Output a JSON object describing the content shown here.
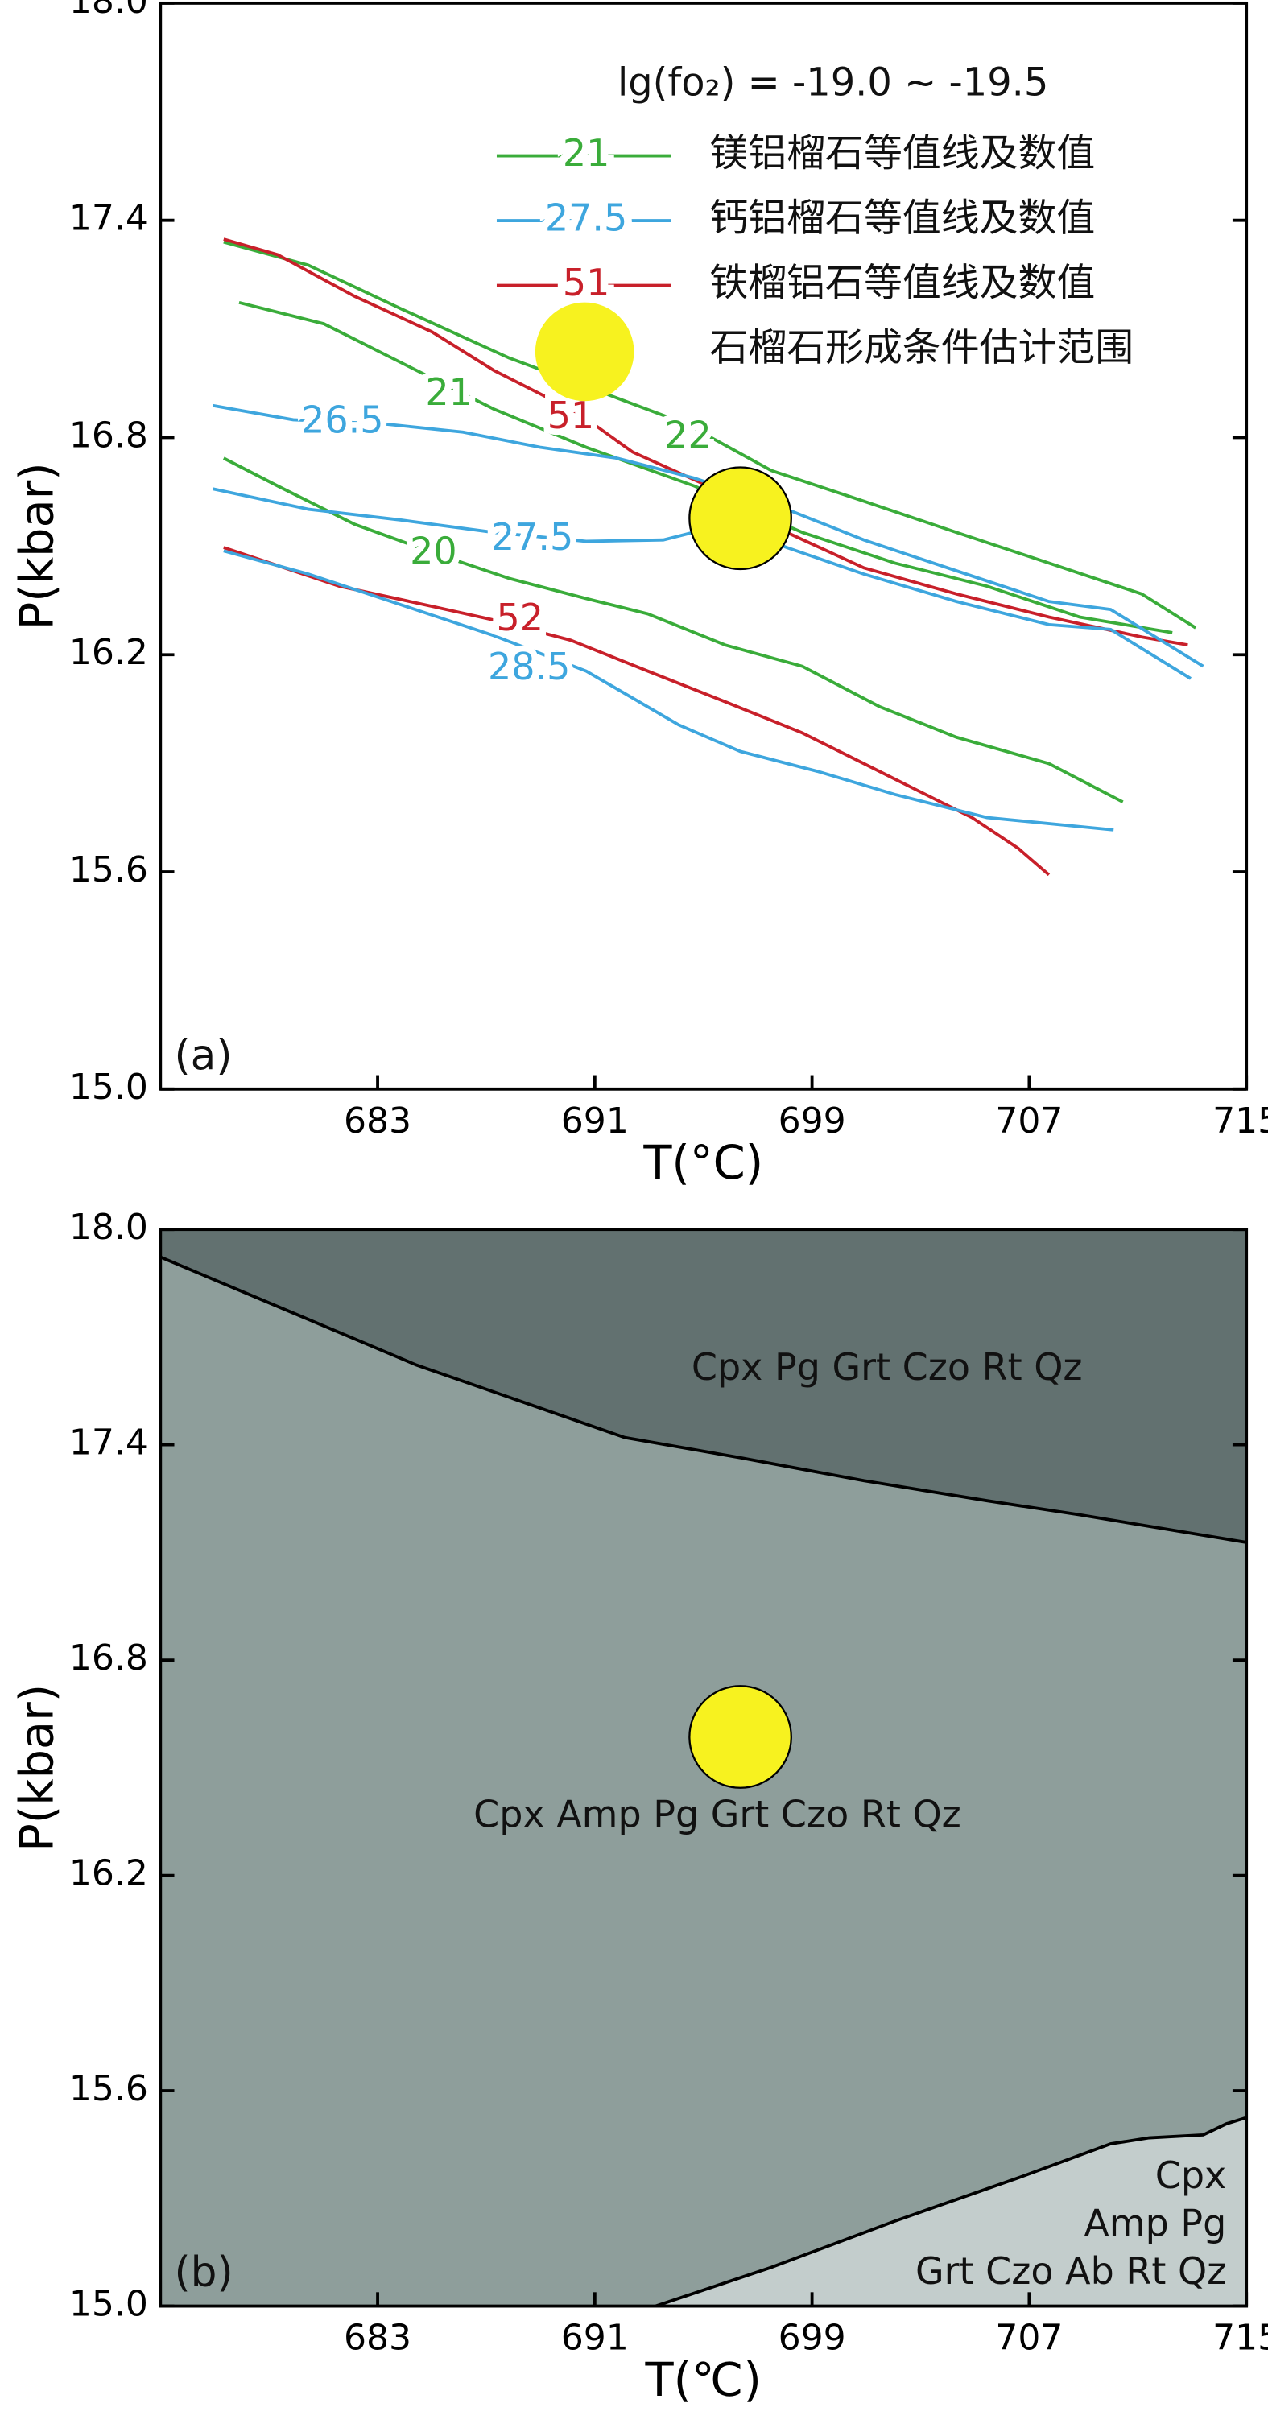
{
  "chart_data": [
    {
      "type": "line",
      "title": "lg(fo₂) = -19.0 ~ -19.5",
      "panel": "(a)",
      "x_label": "T(°C)",
      "y_label": "P(kbar)",
      "xlim": [
        675,
        715
      ],
      "ylim": [
        15,
        18
      ],
      "xticks": [
        683,
        691,
        699,
        707,
        715
      ],
      "yticks": [
        {
          "value": 18,
          "label": "18.0"
        },
        17.4,
        16.8,
        16.2,
        15.6,
        {
          "value": 15,
          "label": "15.0"
        }
      ],
      "legend": [
        {
          "label": "21",
          "name": "镁铝榴石等值线及数值",
          "color": "#3aac3a"
        },
        {
          "label": "27.5",
          "name": "钙铝榴石等值线及数值",
          "color": "#3ea6de"
        },
        {
          "label": "51",
          "name": "铁榴铝石等值线及数值",
          "color": "#c8202a"
        },
        {
          "name": "石榴石形成条件估计范围",
          "color": "#f7f21f"
        }
      ],
      "series": [
        {
          "label": "22",
          "color": "#3aac3a",
          "x": [
            677.33,
            680.45,
            683.86,
            687.84,
            691.82,
            694.38,
            697.5,
            700.91,
            704.32,
            707.73,
            711.14,
            713.13
          ],
          "y": [
            17.34,
            17.276,
            17.156,
            17.02,
            16.909,
            16.837,
            16.709,
            16.624,
            16.538,
            16.453,
            16.368,
            16.274
          ]
        },
        {
          "label": "21",
          "color": "#3aac3a",
          "x": [
            677.9,
            681.02,
            683.86,
            687.27,
            690.68,
            694.66,
            698.64,
            702.05,
            705.45,
            708.86,
            712.27
          ],
          "y": [
            17.173,
            17.114,
            17.007,
            16.879,
            16.773,
            16.666,
            16.538,
            16.453,
            16.389,
            16.304,
            16.261
          ]
        },
        {
          "label": "20",
          "color": "#3aac3a",
          "x": [
            677.33,
            679.32,
            682.16,
            685.0,
            687.84,
            690.68,
            692.95,
            695.8,
            698.64,
            701.48,
            704.32,
            707.73,
            710.45
          ],
          "y": [
            16.743,
            16.666,
            16.56,
            16.483,
            16.411,
            16.355,
            16.313,
            16.227,
            16.168,
            16.057,
            15.972,
            15.899,
            15.793
          ]
        },
        {
          "label": "51",
          "color": "#c8202a",
          "x": [
            677.33,
            679.32,
            682.16,
            685.0,
            687.27,
            690.4,
            692.39,
            695.8,
            698.07,
            700.91,
            704.32,
            707.73,
            711.14,
            712.84
          ],
          "y": [
            17.348,
            17.305,
            17.19,
            17.092,
            16.986,
            16.867,
            16.76,
            16.645,
            16.538,
            16.44,
            16.368,
            16.304,
            16.249,
            16.227
          ]
        },
        {
          "label": "52",
          "color": "#c8202a",
          "x": [
            677.33,
            681.59,
            685.0,
            687.27,
            690.11,
            692.95,
            695.8,
            698.64,
            700.91,
            703.18,
            704.89,
            706.59,
            707.73
          ],
          "y": [
            16.496,
            16.389,
            16.334,
            16.296,
            16.24,
            16.155,
            16.07,
            15.984,
            15.899,
            15.814,
            15.75,
            15.665,
            15.592
          ]
        },
        {
          "label": "26.5",
          "color": "#3ea6de",
          "x": [
            676.93,
            679.89,
            683.3,
            686.14,
            688.98,
            691.82,
            694.66,
            698.07,
            700.91,
            704.32,
            707.73,
            710.0,
            713.41
          ],
          "y": [
            16.888,
            16.849,
            16.837,
            16.815,
            16.773,
            16.743,
            16.688,
            16.602,
            16.517,
            16.432,
            16.347,
            16.325,
            16.168
          ]
        },
        {
          "label": "27.5",
          "color": "#3ea6de",
          "x": [
            676.93,
            680.45,
            683.86,
            687.27,
            690.68,
            693.52,
            695.8,
            698.07,
            700.91,
            704.32,
            707.73,
            710.0,
            712.95
          ],
          "y": [
            16.658,
            16.602,
            16.572,
            16.538,
            16.513,
            16.517,
            16.56,
            16.496,
            16.423,
            16.347,
            16.283,
            16.27,
            16.134
          ]
        },
        {
          "label": "28.5",
          "color": "#3ea6de",
          "x": [
            677.33,
            680.45,
            683.86,
            687.27,
            690.68,
            694.09,
            696.36,
            699.2,
            702.05,
            705.45,
            710.11
          ],
          "y": [
            16.487,
            16.423,
            16.338,
            16.253,
            16.155,
            16.006,
            15.933,
            15.878,
            15.814,
            15.75,
            15.716
          ]
        }
      ],
      "points": {
        "x": [
          696.36
        ],
        "y": [
          16.577
        ],
        "color": "#f7f21f"
      }
    },
    {
      "type": "area",
      "panel": "(b)",
      "x_label": "T(℃)",
      "y_label": "P(kbar)",
      "xlim": [
        675,
        715
      ],
      "ylim": [
        15,
        18
      ],
      "xticks": [
        683,
        691,
        699,
        707,
        715
      ],
      "yticks": [
        {
          "value": 18,
          "label": "18.0"
        },
        17.4,
        16.8,
        16.2,
        15.6,
        {
          "value": 15,
          "label": "15.0"
        }
      ],
      "fields": [
        {
          "label": "Cpx Pg Grt Czo Rt Qz",
          "color": "#627170"
        },
        {
          "label": "Cpx Amp Pg Grt Czo Rt Qz",
          "color": "#8e9e9b"
        },
        {
          "label": [
            "Cpx",
            "Amp Pg",
            "Grt Czo Ab Rt Qz"
          ],
          "color": "#c3cdcc"
        }
      ],
      "boundaries": [
        {
          "x": [
            675,
            684.43,
            692.1,
            696.36,
            700.91,
            705.45,
            708.86,
            715
          ],
          "y": [
            17.923,
            17.622,
            17.42,
            17.364,
            17.3,
            17.244,
            17.205,
            17.128
          ]
        },
        {
          "x": [
            693.24,
            697.5,
            702.05,
            706.59,
            710.0,
            711.42,
            713.41,
            714.26,
            715
          ],
          "y": [
            15.0,
            15.108,
            15.237,
            15.357,
            15.452,
            15.469,
            15.477,
            15.508,
            15.525
          ]
        }
      ],
      "points": {
        "x": [
          696.36
        ],
        "y": [
          16.586
        ],
        "color": "#f7f21f"
      }
    }
  ]
}
